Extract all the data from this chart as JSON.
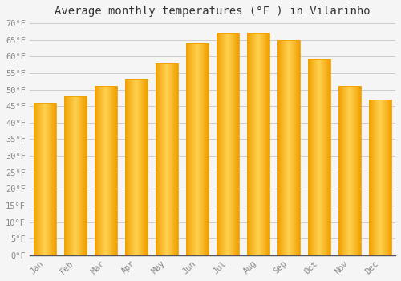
{
  "title": "Average monthly temperatures (°F ) in Vilarinho",
  "months": [
    "Jan",
    "Feb",
    "Mar",
    "Apr",
    "May",
    "Jun",
    "Jul",
    "Aug",
    "Sep",
    "Oct",
    "Nov",
    "Dec"
  ],
  "values": [
    46,
    48,
    51,
    53,
    58,
    64,
    67,
    67,
    65,
    59,
    51,
    47
  ],
  "bar_color_center": "#FFD050",
  "bar_color_edge": "#F0A000",
  "ylim": [
    0,
    70
  ],
  "yticks": [
    0,
    5,
    10,
    15,
    20,
    25,
    30,
    35,
    40,
    45,
    50,
    55,
    60,
    65,
    70
  ],
  "ylabel_suffix": "°F",
  "background_color": "#f5f5f5",
  "plot_bg_color": "#f5f5f5",
  "grid_color": "#cccccc",
  "title_fontsize": 10,
  "tick_fontsize": 7.5,
  "tick_color": "#888888",
  "font_family": "monospace",
  "bar_width": 0.75
}
